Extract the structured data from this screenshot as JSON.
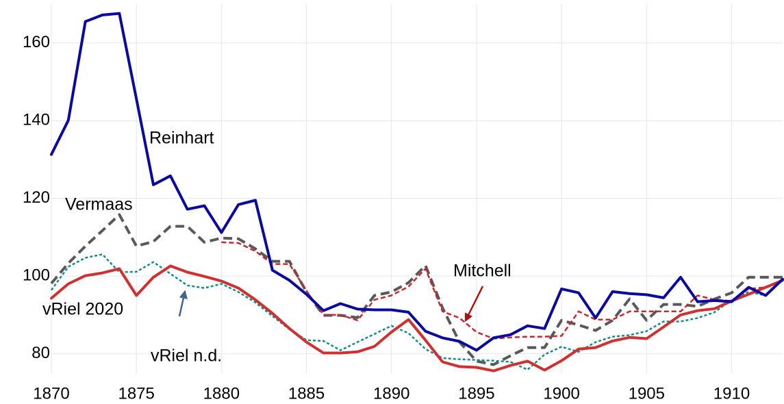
{
  "chart_data": {
    "type": "line",
    "x": [
      1870,
      1871,
      1872,
      1873,
      1874,
      1875,
      1876,
      1877,
      1878,
      1879,
      1880,
      1881,
      1882,
      1883,
      1884,
      1885,
      1886,
      1887,
      1888,
      1889,
      1890,
      1891,
      1892,
      1893,
      1894,
      1895,
      1896,
      1897,
      1898,
      1899,
      1900,
      1901,
      1902,
      1903,
      1904,
      1905,
      1906,
      1907,
      1908,
      1909,
      1910,
      1911,
      1912,
      1913
    ],
    "xlim": [
      1870,
      1913
    ],
    "xticks": [
      1870,
      1875,
      1880,
      1885,
      1890,
      1895,
      1900,
      1905,
      1910
    ],
    "ylim": [
      75,
      170
    ],
    "yticks": [
      80,
      100,
      120,
      140,
      160
    ],
    "grid": true,
    "series": [
      {
        "name": "Vermaas",
        "color": "#595959",
        "style": "dashed",
        "values": [
          98.1,
          103.3,
          107.7,
          111.7,
          115.8,
          107.7,
          108.9,
          112.8,
          112.8,
          108.7,
          109.8,
          109.6,
          107.0,
          103.8,
          103.8,
          95.9,
          89.9,
          89.9,
          89.3,
          95.0,
          95.9,
          98.3,
          102.7,
          91.8,
          83.0,
          78.1,
          77.2,
          79.5,
          81.6,
          81.6,
          88.6,
          87.4,
          86.0,
          88.6,
          94.1,
          88.6,
          92.7,
          92.7,
          92.2,
          94.1,
          95.7,
          99.7,
          99.7,
          99.7
        ]
      },
      {
        "name": "Mitchell",
        "color": "#c8282d",
        "style": "short-dashed",
        "values": [
          null,
          null,
          null,
          null,
          null,
          null,
          null,
          null,
          null,
          null,
          108.7,
          108.5,
          106.4,
          103.1,
          103.1,
          96.2,
          90.0,
          90.0,
          88.6,
          93.9,
          95.0,
          97.3,
          101.9,
          90.9,
          89.2,
          85.6,
          83.9,
          84.2,
          84.4,
          84.4,
          84.6,
          90.9,
          88.8,
          88.8,
          90.9,
          90.9,
          90.9,
          90.9,
          95.0,
          93.9,
          93.6,
          96.7,
          97.1,
          98.9
        ]
      },
      {
        "name": "vRiel n.d.",
        "color": "#138a8a",
        "style": "dotted",
        "values": [
          96.4,
          102.4,
          104.7,
          105.6,
          101.0,
          101.1,
          103.6,
          100.6,
          97.6,
          96.9,
          98.0,
          95.9,
          93.2,
          89.7,
          86.3,
          83.5,
          83.3,
          80.9,
          83.0,
          85.1,
          87.2,
          85.3,
          81.2,
          78.9,
          78.6,
          78.4,
          78.2,
          77.9,
          75.9,
          79.8,
          81.8,
          80.5,
          83.0,
          84.4,
          84.8,
          85.8,
          88.3,
          88.3,
          89.2,
          90.7,
          93.9,
          95.9,
          95.0,
          98.9
        ]
      },
      {
        "name": "vRiel 2020",
        "color": "#d0302f",
        "style": "solid",
        "values": [
          94.3,
          98.0,
          100.1,
          100.8,
          101.9,
          95.0,
          99.7,
          102.6,
          101.0,
          99.9,
          98.7,
          96.9,
          93.9,
          90.4,
          86.5,
          83.0,
          80.2,
          80.2,
          80.5,
          81.9,
          85.6,
          88.8,
          83.5,
          77.9,
          76.7,
          76.5,
          75.6,
          77.0,
          78.1,
          75.8,
          78.2,
          81.2,
          81.6,
          83.3,
          84.2,
          83.9,
          86.9,
          90.0,
          91.1,
          91.6,
          93.6,
          95.3,
          97.1,
          98.9
        ]
      },
      {
        "name": "Reinhart",
        "color": "#0a0aa0",
        "style": "solid",
        "values": [
          131.3,
          140.1,
          165.5,
          167.2,
          167.6,
          145.6,
          123.5,
          125.8,
          117.2,
          118.1,
          111.2,
          118.4,
          119.5,
          101.5,
          98.9,
          95.3,
          91.1,
          92.9,
          91.5,
          91.3,
          91.3,
          90.7,
          85.8,
          84.1,
          83.2,
          80.9,
          84.1,
          84.9,
          87.2,
          86.5,
          96.7,
          95.7,
          89.2,
          96.0,
          95.5,
          95.2,
          94.4,
          99.7,
          93.4,
          93.7,
          93.4,
          97.1,
          95.0,
          99.2
        ]
      }
    ]
  }
}
